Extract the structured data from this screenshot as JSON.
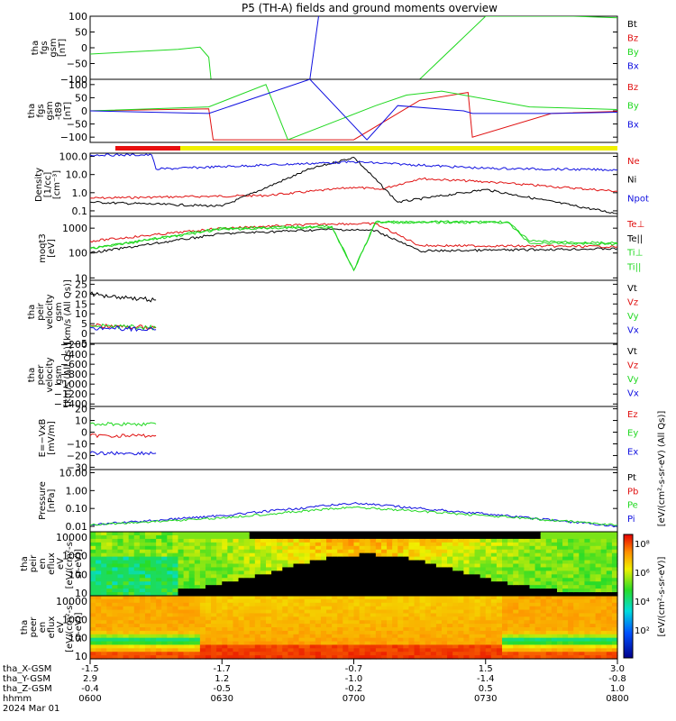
{
  "title": "P5 (TH-A) fields and ground moments overview",
  "colors": {
    "black": "#000000",
    "red": "#e01010",
    "green": "#20d820",
    "blue": "#1010e0",
    "yellow": "#f0f000",
    "bar_red": "#e81010"
  },
  "panels": [
    {
      "id": "fgs-gsm",
      "ylabel": [
        "tha",
        "fgs",
        "gsm",
        "[nT]"
      ],
      "yscale": "linear",
      "yrange": [
        -100,
        100
      ],
      "ticks": [
        "100",
        "50",
        "0",
        "−50",
        "−100"
      ],
      "legend": [
        {
          "label": "Bt",
          "color": "#000000"
        },
        {
          "label": "Bz",
          "color": "#e01010"
        },
        {
          "label": "By",
          "color": "#20d820"
        },
        {
          "label": "Bx",
          "color": "#1010e0"
        }
      ]
    },
    {
      "id": "fgs-gsm-zoom",
      "ylabel": [
        "tha",
        "fgs",
        "gsm",
        "-t89",
        "[nT]"
      ],
      "yscale": "linear",
      "yrange": [
        -120,
        120
      ],
      "ticks": [
        "100",
        "50",
        "0",
        "−50",
        "−100"
      ],
      "legend": [
        {
          "label": "Bz",
          "color": "#e01010"
        },
        {
          "label": "By",
          "color": "#20d820"
        },
        {
          "label": "Bx",
          "color": "#1010e0"
        }
      ]
    },
    {
      "id": "density",
      "ylabel": [
        "Density",
        "[1/cc]",
        "[cm⁻³]"
      ],
      "yscale": "log",
      "yrange": [
        0.05,
        150
      ],
      "ticks": [
        "100.0",
        "10.0",
        "1.0",
        "0.1"
      ],
      "legend": [
        {
          "label": "Ne",
          "color": "#e01010"
        },
        {
          "label": "Ni",
          "color": "#000000"
        },
        {
          "label": "Npot",
          "color": "#1010e0"
        }
      ]
    },
    {
      "id": "temperature",
      "ylabel": [
        "moqt3",
        "[eV]"
      ],
      "yscale": "log",
      "yrange": [
        8,
        3000
      ],
      "ticks": [
        "1000",
        "100",
        "10"
      ],
      "legend": [
        {
          "label": "Te⊥",
          "color": "#e01010"
        },
        {
          "label": "Te||",
          "color": "#000000"
        },
        {
          "label": "Ti⊥",
          "color": "#20d820"
        },
        {
          "label": "Ti||",
          "color": "#20d820"
        }
      ]
    },
    {
      "id": "peir-velocity",
      "ylabel": [
        "tha",
        "peir",
        "velocity",
        "gsm",
        "[km/s (All Qs)]"
      ],
      "yscale": "linear",
      "yrange": [
        -5,
        27
      ],
      "ticks": [
        "25",
        "20",
        "15",
        "10",
        "5",
        "0",
        "−5"
      ],
      "legend": [
        {
          "label": "Vt",
          "color": "#000000"
        },
        {
          "label": "Vz",
          "color": "#e01010"
        },
        {
          "label": "Vy",
          "color": "#20d820"
        },
        {
          "label": "Vx",
          "color": "#1010e0"
        }
      ]
    },
    {
      "id": "peer-velocity",
      "ylabel": [
        "tha",
        "peer",
        "velocity",
        "gsm",
        "[km/s (All Qs)]"
      ],
      "yscale": "linear",
      "yrange": [
        -1450,
        -180
      ],
      "ticks": [
        "−200",
        "−400",
        "−600",
        "−800",
        "−1000",
        "−1200",
        "−1400"
      ],
      "legend": [
        {
          "label": "Vt",
          "color": "#000000"
        },
        {
          "label": "Vz",
          "color": "#e01010"
        },
        {
          "label": "Vy",
          "color": "#20d820"
        },
        {
          "label": "Vx",
          "color": "#1010e0"
        }
      ]
    },
    {
      "id": "efield",
      "ylabel": [
        "E=−VxB",
        "[mV/m]"
      ],
      "yscale": "linear",
      "yrange": [
        -32,
        22
      ],
      "ticks": [
        "20",
        "10",
        "0",
        "−10",
        "−20",
        "−30"
      ],
      "legend": [
        {
          "label": "Ez",
          "color": "#e01010"
        },
        {
          "label": "Ey",
          "color": "#20d820"
        },
        {
          "label": "Ex",
          "color": "#1010e0"
        }
      ]
    },
    {
      "id": "pressure",
      "ylabel": [
        "Pressure",
        "[nPa]"
      ],
      "yscale": "log",
      "yrange": [
        0.005,
        15
      ],
      "ticks": [
        "10.00",
        "1.00",
        "0.10",
        "0.01"
      ],
      "legend": [
        {
          "label": "Pt",
          "color": "#000000"
        },
        {
          "label": "Pb",
          "color": "#e01010"
        },
        {
          "label": "Pe",
          "color": "#20d820"
        },
        {
          "label": "Pi",
          "color": "#1010e0"
        }
      ]
    },
    {
      "id": "peir-spectrogram",
      "ylabel": [
        "tha",
        "peir",
        "en",
        "eflux",
        "eV",
        "[eV/(cm²-s-",
        "sr-eV)]"
      ],
      "yscale": "log",
      "yrange": [
        7,
        20000
      ],
      "ticks": [
        "10000",
        "1000",
        "100",
        "10"
      ],
      "legend": []
    },
    {
      "id": "peer-spectrogram",
      "ylabel": [
        "tha",
        "peer",
        "en",
        "eflux",
        "eV",
        "[eV/(cm²-s-",
        "sr-eV)]"
      ],
      "yscale": "log",
      "yrange": [
        7,
        20000
      ],
      "ticks": [
        "10000",
        "1000",
        "100",
        "10"
      ],
      "legend": []
    }
  ],
  "colorbar": {
    "ticks": [
      "10⁸",
      "10⁶",
      "10⁴",
      "10²"
    ],
    "label": "[eV/(cm²-s-sr-eV)]",
    "overlay_label": "[eV/(cm²-s-sr-eV) (All Qs)]"
  },
  "xaxis": {
    "rows": [
      {
        "label": "tha_X-GSM",
        "values": [
          "-1.5",
          "-1.7",
          "-0.7",
          "1.5",
          "3.0"
        ]
      },
      {
        "label": "tha_Y-GSM",
        "values": [
          "2.9",
          "1.2",
          "-1.0",
          "-1.4",
          "-0.8"
        ]
      },
      {
        "label": "tha_Z-GSM",
        "values": [
          "-0.4",
          "-0.5",
          "-0.2",
          "0.5",
          "1.0"
        ]
      },
      {
        "label": "hhmm",
        "values": [
          "0600",
          "0630",
          "0700",
          "0730",
          "0800"
        ]
      }
    ],
    "date": "2024 Mar 01"
  },
  "chart_data": {
    "type": "line",
    "title": "P5 (TH-A) fields and ground moments overview",
    "x_axis": {
      "label": "hhmm",
      "range": [
        "0600",
        "0800"
      ],
      "ticks": [
        "0600",
        "0630",
        "0700",
        "0730",
        "0800"
      ]
    },
    "date": "2024 Mar 01",
    "orbit_labels": {
      "tha_X-GSM": [
        -1.5,
        -1.7,
        -0.7,
        1.5,
        3.0
      ],
      "tha_Y-GSM": [
        2.9,
        1.2,
        -1.0,
        -1.4,
        -0.8
      ],
      "tha_Z-GSM": [
        -0.4,
        -0.5,
        -0.2,
        0.5,
        1.0
      ]
    },
    "panels": [
      {
        "name": "tha fgs gsm [nT]",
        "ylim": [
          -100,
          100
        ],
        "series": [
          {
            "name": "By",
            "x": [
              "0600",
              "0620",
              "0625",
              "0627",
              "0627.5"
            ],
            "values": [
              -20,
              -5,
              2,
              -30,
              -100
            ]
          },
          {
            "name": "By",
            "x": [
              "0715",
              "0730",
              "0740",
              "0750",
              "0800"
            ],
            "values": [
              -100,
              100,
              100,
              100,
              95
            ]
          },
          {
            "name": "Bx",
            "x": [
              "0650",
              "0652"
            ],
            "values": [
              -100,
              100
            ]
          }
        ]
      },
      {
        "name": "tha fgs gsm -t89 [nT]",
        "ylim": [
          -120,
          120
        ],
        "series": [
          {
            "name": "Bz",
            "x": [
              "0600",
              "0627",
              "0628",
              "0700",
              "0715",
              "0726",
              "0727",
              "0745",
              "0800"
            ],
            "values": [
              0,
              8,
              -110,
              -110,
              40,
              70,
              -100,
              -10,
              -2
            ]
          },
          {
            "name": "By",
            "x": [
              "0600",
              "0627",
              "0640",
              "0645",
              "0705",
              "0712",
              "0720",
              "0740",
              "0800"
            ],
            "values": [
              0,
              15,
              100,
              -110,
              20,
              60,
              75,
              15,
              5
            ]
          },
          {
            "name": "Bx",
            "x": [
              "0600",
              "0627",
              "0650",
              "0703",
              "0710",
              "0725",
              "0727",
              "0745",
              "0800"
            ],
            "values": [
              0,
              -10,
              120,
              -110,
              20,
              0,
              -10,
              -10,
              -5
            ]
          }
        ]
      },
      {
        "name": "Density [1/cc]",
        "ylim": [
          0.05,
          150
        ],
        "series": [
          {
            "name": "Ne",
            "x": [
              "0600",
              "0640",
              "0655",
              "0700",
              "0706",
              "0715",
              "0730",
              "0800"
            ],
            "values": [
              0.5,
              0.7,
              1.5,
              2.0,
              1.5,
              6,
              4,
              1.2
            ]
          },
          {
            "name": "Ni",
            "x": [
              "0600",
              "0630",
              "0650",
              "0700",
              "0710",
              "0730",
              "0800"
            ],
            "values": [
              0.3,
              0.18,
              20,
              90,
              0.3,
              1.5,
              0.07
            ]
          },
          {
            "name": "Npot",
            "x": [
              "0600",
              "0614",
              "0615",
              "0700",
              "0730",
              "0800"
            ],
            "values": [
              120,
              120,
              20,
              50,
              22,
              18
            ]
          }
        ]
      },
      {
        "name": "moqt3 [eV]",
        "ylim": [
          8,
          3000
        ],
        "series": [
          {
            "name": "Te⊥",
            "x": [
              "0600",
              "0630",
              "0655",
              "0705",
              "0715",
              "0800"
            ],
            "values": [
              300,
              1000,
              1500,
              1500,
              200,
              180
            ]
          },
          {
            "name": "Te||",
            "x": [
              "0600",
              "0630",
              "0655",
              "0705",
              "0715",
              "0800"
            ],
            "values": [
              100,
              600,
              900,
              800,
              120,
              150
            ]
          },
          {
            "name": "Ti⊥",
            "x": [
              "0600",
              "0630",
              "0655",
              "0700",
              "0705",
              "0735",
              "0740",
              "0800"
            ],
            "values": [
              150,
              1000,
              1200,
              20,
              1800,
              1800,
              300,
              250
            ]
          },
          {
            "name": "Ti||",
            "x": [
              "0600",
              "0630",
              "0655",
              "0700",
              "0705",
              "0735",
              "0740",
              "0800"
            ],
            "values": [
              150,
              900,
              1100,
              20,
              1700,
              1700,
              250,
              230
            ]
          }
        ]
      },
      {
        "name": "tha peir velocity gsm [km/s (All Qs)]",
        "ylim": [
          -5,
          27
        ],
        "series": [
          {
            "name": "Vt",
            "x": [
              "0600",
              "0615"
            ],
            "values": [
              20,
              17
            ]
          },
          {
            "name": "Vz",
            "x": [
              "0600",
              "0615"
            ],
            "values": [
              4,
              3
            ]
          },
          {
            "name": "Vy",
            "x": [
              "0600",
              "0615"
            ],
            "values": [
              4,
              3
            ]
          },
          {
            "name": "Vx",
            "x": [
              "0600",
              "0615"
            ],
            "values": [
              3,
              2
            ]
          }
        ]
      },
      {
        "name": "tha peer velocity gsm [km/s (All Qs)]",
        "ylim": [
          -1450,
          -180
        ],
        "series": []
      },
      {
        "name": "E=-VxB [mV/m]",
        "ylim": [
          -32,
          22
        ],
        "series": [
          {
            "name": "Ez",
            "x": [
              "0600",
              "0615"
            ],
            "values": [
              -3,
              -3
            ]
          },
          {
            "name": "Ey",
            "x": [
              "0600",
              "0615"
            ],
            "values": [
              7,
              7
            ]
          },
          {
            "name": "Ex",
            "x": [
              "0600",
              "0615"
            ],
            "values": [
              -18,
              -18
            ]
          }
        ]
      },
      {
        "name": "Pressure [nPa]",
        "ylim": [
          0.005,
          15
        ],
        "series": [
          {
            "name": "Pi",
            "x": [
              "0600",
              "0630",
              "0700",
              "0730",
              "0800"
            ],
            "values": [
              0.012,
              0.04,
              0.2,
              0.05,
              0.01
            ]
          },
          {
            "name": "Pe",
            "x": [
              "0600",
              "0630",
              "0700",
              "0730",
              "0800"
            ],
            "values": [
              0.012,
              0.03,
              0.12,
              0.04,
              0.012
            ]
          }
        ]
      }
    ],
    "spectrograms": [
      {
        "name": "tha peir en eflux eV",
        "ylim": [
          7,
          20000
        ],
        "yscale": "log",
        "colorbar_range": [
          "10²",
          "10⁸"
        ]
      },
      {
        "name": "tha peer en eflux eV",
        "ylim": [
          7,
          20000
        ],
        "yscale": "log",
        "colorbar_range": [
          "10²",
          "10⁸"
        ]
      }
    ]
  }
}
